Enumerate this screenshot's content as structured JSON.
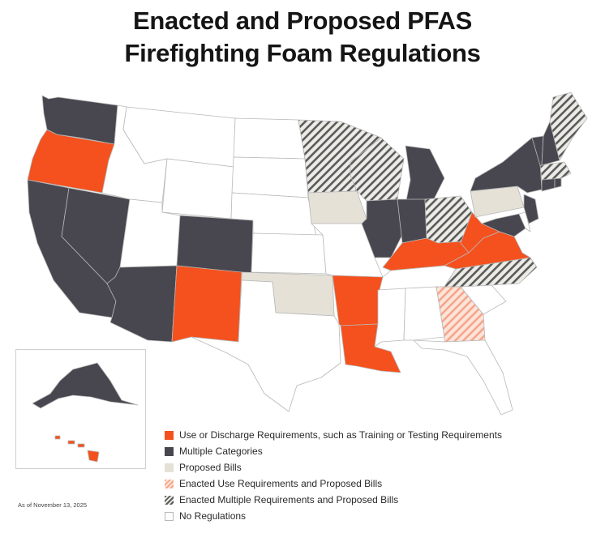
{
  "title": {
    "line1": "Enacted and Proposed PFAS",
    "line2": "Firefighting Foam Regulations"
  },
  "as_of": "As of November 13, 2025",
  "colors": {
    "use": "#f4511e",
    "multiple": "#48474f",
    "proposed": "#e5e1d7",
    "enacted_use_proposed": "#f4a68a",
    "enacted_multi_proposed": "#5a5a5a",
    "none": "#ffffff",
    "border": "#b8b8b8"
  },
  "legend": [
    {
      "key": "use",
      "label": "Use or Discharge Requirements, such as Training or Testing Requirements"
    },
    {
      "key": "multiple",
      "label": "Multiple Categories"
    },
    {
      "key": "proposed",
      "label": "Proposed Bills"
    },
    {
      "key": "enacted_use_proposed",
      "label": "Enacted Use Requirements and Proposed Bills"
    },
    {
      "key": "enacted_multi_proposed",
      "label": "Enacted Multiple Requirements and Proposed Bills"
    },
    {
      "key": "none",
      "label": "No Regulations"
    }
  ],
  "states": [
    {
      "state": "Washington",
      "category": "multiple"
    },
    {
      "state": "Oregon",
      "category": "use"
    },
    {
      "state": "California",
      "category": "multiple"
    },
    {
      "state": "Nevada",
      "category": "multiple"
    },
    {
      "state": "Idaho",
      "category": "none"
    },
    {
      "state": "Montana",
      "category": "none"
    },
    {
      "state": "Wyoming",
      "category": "none"
    },
    {
      "state": "Utah",
      "category": "none"
    },
    {
      "state": "Arizona",
      "category": "multiple"
    },
    {
      "state": "Colorado",
      "category": "multiple"
    },
    {
      "state": "New Mexico",
      "category": "use"
    },
    {
      "state": "North Dakota",
      "category": "none"
    },
    {
      "state": "South Dakota",
      "category": "none"
    },
    {
      "state": "Nebraska",
      "category": "none"
    },
    {
      "state": "Kansas",
      "category": "none"
    },
    {
      "state": "Oklahoma",
      "category": "proposed"
    },
    {
      "state": "Texas",
      "category": "none"
    },
    {
      "state": "Minnesota",
      "category": "enacted_multi_proposed"
    },
    {
      "state": "Iowa",
      "category": "proposed"
    },
    {
      "state": "Missouri",
      "category": "none"
    },
    {
      "state": "Arkansas",
      "category": "use"
    },
    {
      "state": "Louisiana",
      "category": "use"
    },
    {
      "state": "Wisconsin",
      "category": "enacted_multi_proposed"
    },
    {
      "state": "Illinois",
      "category": "multiple"
    },
    {
      "state": "Michigan",
      "category": "multiple"
    },
    {
      "state": "Indiana",
      "category": "multiple"
    },
    {
      "state": "Ohio",
      "category": "enacted_multi_proposed"
    },
    {
      "state": "Kentucky",
      "category": "use"
    },
    {
      "state": "Tennessee",
      "category": "none"
    },
    {
      "state": "Mississippi",
      "category": "none"
    },
    {
      "state": "Alabama",
      "category": "none"
    },
    {
      "state": "Georgia",
      "category": "enacted_use_proposed"
    },
    {
      "state": "Florida",
      "category": "none"
    },
    {
      "state": "South Carolina",
      "category": "none"
    },
    {
      "state": "North Carolina",
      "category": "enacted_multi_proposed"
    },
    {
      "state": "Virginia",
      "category": "use"
    },
    {
      "state": "West Virginia",
      "category": "use"
    },
    {
      "state": "Pennsylvania",
      "category": "proposed"
    },
    {
      "state": "New York",
      "category": "multiple"
    },
    {
      "state": "Maryland",
      "category": "multiple"
    },
    {
      "state": "Delaware",
      "category": "none"
    },
    {
      "state": "New Jersey",
      "category": "multiple"
    },
    {
      "state": "Connecticut",
      "category": "multiple"
    },
    {
      "state": "Rhode Island",
      "category": "multiple"
    },
    {
      "state": "Massachusetts",
      "category": "enacted_multi_proposed"
    },
    {
      "state": "Vermont",
      "category": "multiple"
    },
    {
      "state": "New Hampshire",
      "category": "multiple"
    },
    {
      "state": "Maine",
      "category": "enacted_multi_proposed"
    },
    {
      "state": "Alaska",
      "category": "multiple"
    },
    {
      "state": "Hawaii",
      "category": "use"
    }
  ]
}
